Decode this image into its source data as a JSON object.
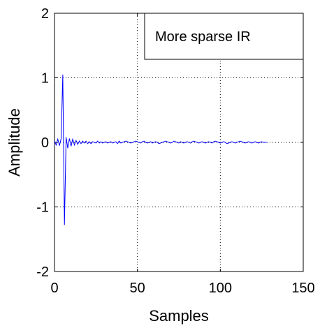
{
  "chart_data": {
    "type": "line",
    "title": "",
    "xlabel": "Samples",
    "ylabel": "Amplitude",
    "xlim": [
      0,
      150
    ],
    "ylim": [
      -2,
      2
    ],
    "xticks": [
      0,
      50,
      100,
      150
    ],
    "yticks": [
      -2,
      -1,
      0,
      1,
      2
    ],
    "grid": true,
    "legend": {
      "placement": "top-right",
      "label": "More sparse IR"
    },
    "series": [
      {
        "color": "#0000ff",
        "x": [
          0,
          1,
          2,
          3,
          4,
          5,
          6,
          7,
          8,
          9,
          10,
          11,
          12,
          13,
          14,
          15,
          16,
          17,
          18,
          19,
          20,
          21,
          22,
          23,
          24,
          25,
          26,
          27,
          28,
          29,
          30,
          31,
          32,
          33,
          34,
          35,
          36,
          37,
          38,
          39,
          40,
          41,
          42,
          43,
          44,
          45,
          46,
          47,
          48,
          49,
          50,
          51,
          52,
          53,
          54,
          55,
          56,
          57,
          58,
          59,
          60,
          61,
          62,
          63,
          64,
          65,
          66,
          67,
          68,
          69,
          70,
          71,
          72,
          73,
          74,
          75,
          76,
          77,
          78,
          79,
          80,
          81,
          82,
          83,
          84,
          85,
          86,
          87,
          88,
          89,
          90,
          91,
          92,
          93,
          94,
          95,
          96,
          97,
          98,
          99,
          100,
          101,
          102,
          103,
          104,
          105,
          106,
          107,
          108,
          109,
          110,
          111,
          112,
          113,
          114,
          115,
          116,
          117,
          118,
          119,
          120,
          121,
          122,
          123,
          124,
          125,
          126,
          127,
          128
        ],
        "y": [
          0.02,
          -0.04,
          0.05,
          -0.05,
          0.06,
          1.05,
          -1.28,
          0.08,
          -0.09,
          0.06,
          -0.06,
          0.05,
          -0.04,
          0.03,
          -0.03,
          0.02,
          -0.02,
          0.02,
          -0.01,
          0.02,
          -0.02,
          0.01,
          -0.02,
          0.01,
          0.0,
          -0.01,
          0.02,
          -0.01,
          0.01,
          -0.01,
          0.0,
          0.01,
          -0.01,
          0.0,
          0.01,
          -0.01,
          0.0,
          0.01,
          -0.02,
          0.02,
          -0.01,
          0.0,
          0.01,
          0.02,
          0.01,
          0.0,
          -0.01,
          0.0,
          0.01,
          0.02,
          0.01,
          0.0,
          -0.01,
          0.01,
          0.02,
          0.0,
          -0.01,
          0.0,
          0.01,
          -0.01,
          0.0,
          0.01,
          0.0,
          -0.02,
          -0.01,
          0.0,
          0.01,
          0.02,
          0.01,
          0.0,
          -0.01,
          0.0,
          0.02,
          0.01,
          0.0,
          -0.01,
          0.01,
          0.0,
          -0.01,
          0.0,
          0.01,
          0.0,
          -0.01,
          0.01,
          0.02,
          0.01,
          0.0,
          -0.01,
          0.0,
          0.01,
          0.0,
          -0.01,
          0.0,
          0.01,
          0.0,
          -0.01,
          0.01,
          0.02,
          0.01,
          0.0,
          -0.01,
          0.0,
          0.01,
          0.0,
          -0.02,
          -0.01,
          0.0,
          0.01,
          0.0,
          -0.01,
          0.0,
          0.01,
          0.02,
          0.01,
          0.0,
          -0.01,
          0.0,
          0.01,
          0.0,
          -0.01,
          0.0,
          0.01,
          0.0,
          -0.01,
          0.0,
          0.01,
          0.0,
          0.0,
          0.0
        ]
      }
    ]
  }
}
